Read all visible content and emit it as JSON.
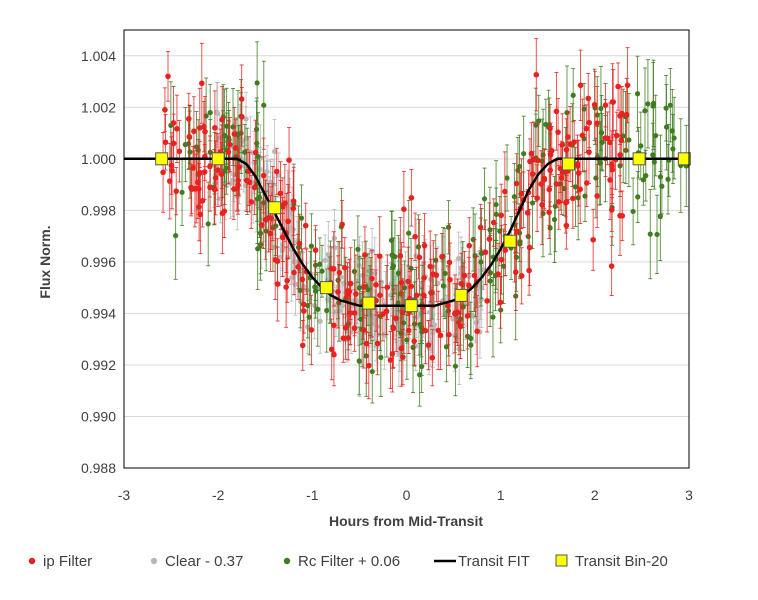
{
  "chart_data": {
    "type": "scatter",
    "title": "",
    "xlabel": "Hours from Mid-Transit",
    "ylabel": "Flux Norm.",
    "xlim": [
      -3,
      3
    ],
    "ylim": [
      0.988,
      1.005
    ],
    "x_ticks": [
      "-3",
      "-2",
      "-1",
      "0",
      "1",
      "2",
      "3"
    ],
    "y_ticks": [
      "0.988",
      "0.990",
      "0.992",
      "0.994",
      "0.996",
      "0.998",
      "1.000",
      "1.002",
      "1.004"
    ],
    "grid": "horizontal",
    "legend_position": "bottom",
    "legend": [
      "ip Filter",
      "Clear - 0.37",
      "Rc Filter + 0.06",
      "Transit FIT",
      "Transit Bin-20"
    ],
    "colors": {
      "ip": "#e8221f",
      "clear": "#b9b9b9",
      "rc": "#3f7d20",
      "fit": "#000000",
      "bin_fill": "#ffff00",
      "bin_edge": "#555555"
    },
    "series": [
      {
        "name": "ip Filter",
        "marker": "dot",
        "note": "approx. 300 points with vertical error bars (~±0.0012) following the transit shape, scatter ~±0.0015",
        "depth": 0.0057
      },
      {
        "name": "Clear - 0.37",
        "marker": "dot",
        "note": "approx. 250 points concentrated in x from -2.0 to 0.8, errors ~±0.0011"
      },
      {
        "name": "Rc Filter + 0.06",
        "marker": "dot",
        "note": "approx. 250 points spanning x from -2.5 to 3.0, errors ~±0.0014"
      },
      {
        "name": "Transit FIT",
        "type": "line",
        "x": [
          -3.0,
          -1.8,
          -1.7,
          -1.6,
          -1.5,
          -1.4,
          -1.3,
          -1.2,
          -1.1,
          -1.0,
          -0.9,
          -0.8,
          -0.7,
          -0.6,
          -0.5,
          -0.4,
          -0.3,
          -0.2,
          -0.1,
          0.0,
          0.1,
          0.2,
          0.3,
          0.4,
          0.5,
          0.6,
          0.7,
          0.8,
          0.9,
          1.0,
          1.1,
          1.2,
          1.3,
          1.4,
          1.5,
          1.6,
          3.0
        ],
        "y": [
          1.0,
          1.0,
          0.9998,
          0.9993,
          0.9986,
          0.9979,
          0.9972,
          0.9965,
          0.9959,
          0.9954,
          0.995,
          0.9947,
          0.9945,
          0.9944,
          0.9943,
          0.9943,
          0.9943,
          0.9943,
          0.9943,
          0.9943,
          0.9943,
          0.9943,
          0.9943,
          0.9944,
          0.9945,
          0.9947,
          0.995,
          0.9954,
          0.9959,
          0.9965,
          0.9972,
          0.998,
          0.9988,
          0.9994,
          0.9998,
          1.0,
          1.0
        ]
      },
      {
        "name": "Transit Bin-20",
        "marker": "square",
        "x": [
          -2.6,
          -2.0,
          -1.4,
          -0.85,
          -0.4,
          0.05,
          0.58,
          1.1,
          1.72,
          2.47,
          2.95
        ],
        "y": [
          1.0,
          1.0,
          0.9981,
          0.995,
          0.9944,
          0.9943,
          0.9947,
          0.9968,
          0.9998,
          1.0,
          1.0
        ]
      }
    ]
  }
}
